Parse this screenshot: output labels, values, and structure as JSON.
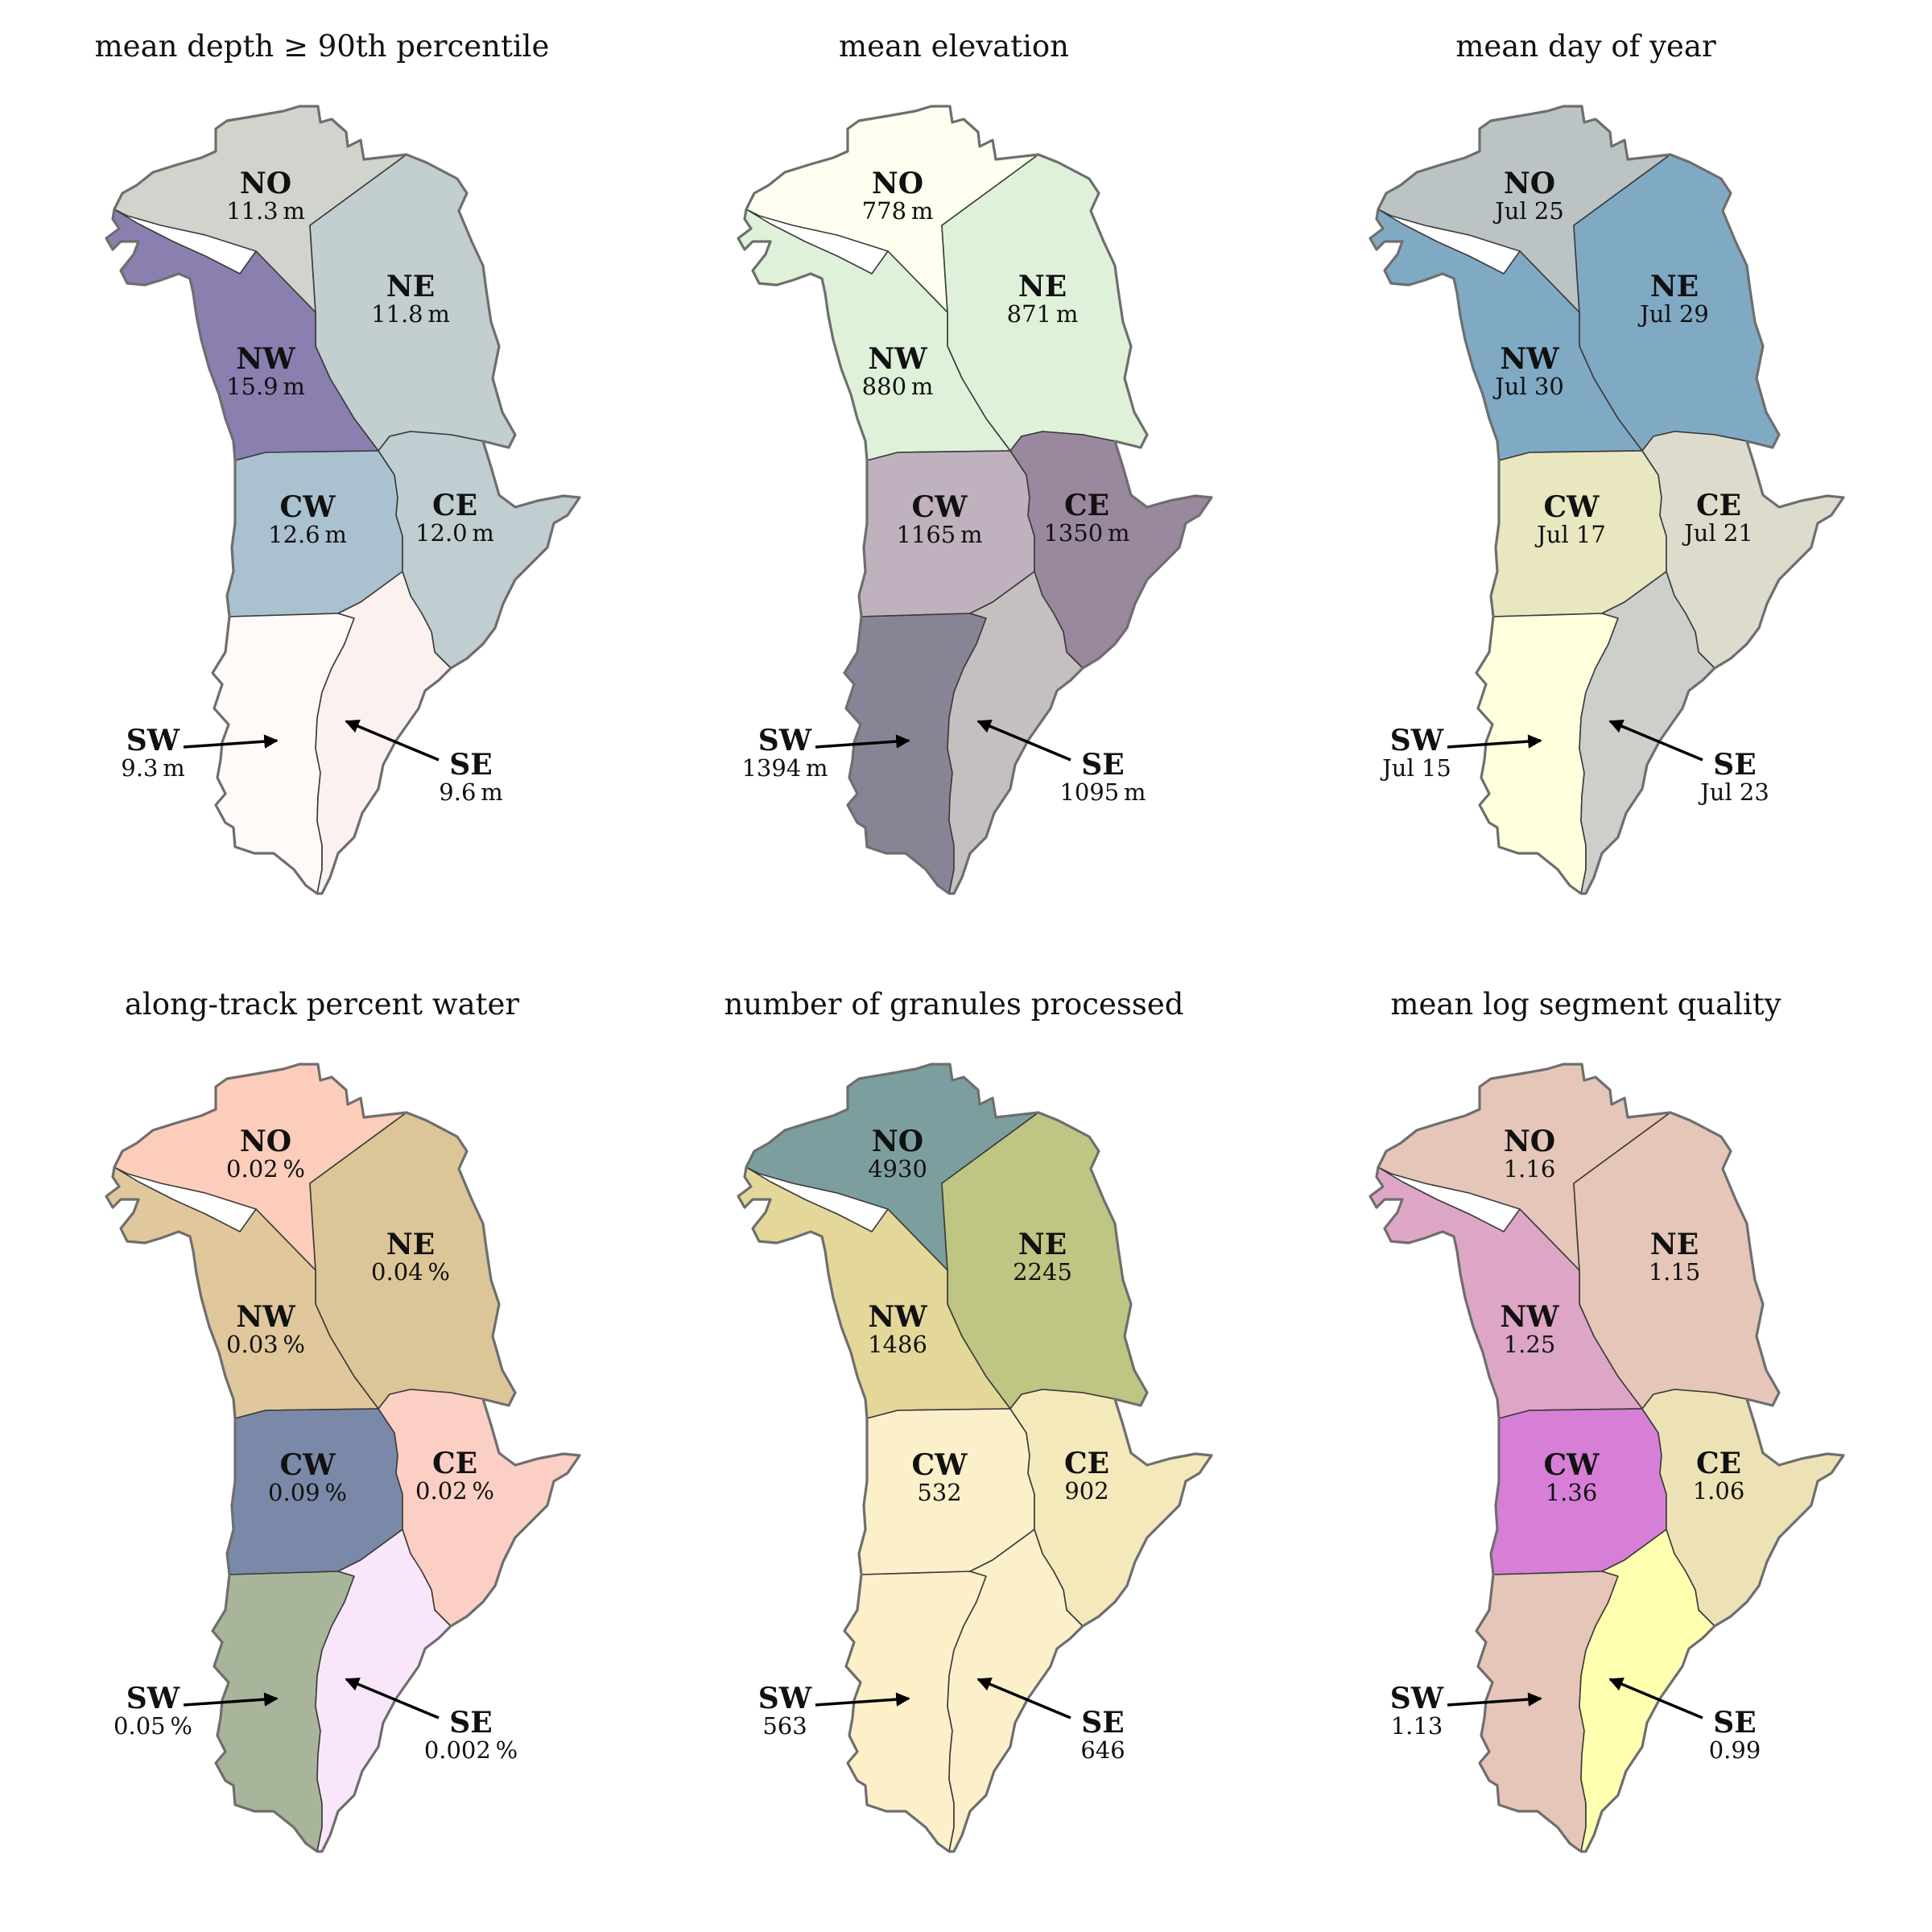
{
  "figure": {
    "region_codes": [
      "NO",
      "NE",
      "NW",
      "CW",
      "CE",
      "SW",
      "SE"
    ]
  },
  "panels": [
    {
      "title": "mean depth ≥ 90th percentile",
      "values": {
        "NO": "11.3 m",
        "NE": "11.8 m",
        "NW": "15.9 m",
        "CW": "12.6 m",
        "CE": "12.0 m",
        "SW": "9.3 m",
        "SE": "9.6 m"
      },
      "colors": {
        "NO": "#d0d4cc",
        "NE": "#c2ced0",
        "NW": "#8b7fb0",
        "CW": "#aac2cf",
        "CE": "#c0cdd1",
        "SW": "#fff9f8",
        "SE": "#fbf1ee"
      }
    },
    {
      "title": "mean elevation",
      "values": {
        "NO": "778 m",
        "NE": "871 m",
        "NW": "880 m",
        "CW": "1165 m",
        "CE": "1350 m",
        "SW": "1394 m",
        "SE": "1095 m"
      },
      "colors": {
        "NO": "#fffff0",
        "NE": "#dff2d9",
        "NW": "#dff2d9",
        "CW": "#c0b1bf",
        "CE": "#9a889f",
        "SW": "#888495",
        "SE": "#c5bfc0"
      }
    },
    {
      "title": "mean day of year",
      "values": {
        "NO": "Jul 25",
        "NE": "Jul 29",
        "NW": "Jul 30",
        "CW": "Jul 17",
        "CE": "Jul 21",
        "SW": "Jul 15",
        "SE": "Jul 23"
      },
      "colors": {
        "NO": "#bcc3c5",
        "NE": "#80a9c4",
        "NW": "#80a9c4",
        "CW": "#e8e7c0",
        "CE": "#dddccc",
        "SW": "#ffffdd",
        "SE": "#cdcfca"
      }
    },
    {
      "title": "along-track percent water",
      "values": {
        "NO": "0.02 %",
        "NE": "0.04 %",
        "NW": "0.03 %",
        "CW": "0.09 %",
        "CE": "0.02 %",
        "SW": "0.05 %",
        "SE": "0.002 %"
      },
      "colors": {
        "NO": "#fccdba",
        "NE": "#dcc697",
        "NW": "#e0c89c",
        "CW": "#7b89a8",
        "CE": "#fccfc4",
        "SW": "#a9b59b",
        "SE": "#fae6fa"
      }
    },
    {
      "title": "number of granules processed",
      "values": {
        "NO": "4930",
        "NE": "2245",
        "NW": "1486",
        "CW": "532",
        "CE": "902",
        "SW": "563",
        "SE": "646"
      },
      "colors": {
        "NO": "#7c9e9f",
        "NE": "#bfc582",
        "NW": "#e3d89a",
        "CW": "#fcf0cb",
        "CE": "#f3e9ba",
        "SW": "#fdf0c8",
        "SE": "#fbf0c9"
      }
    },
    {
      "title": "mean log segment quality",
      "values": {
        "NO": "1.16",
        "NE": "1.15",
        "NW": "1.25",
        "CW": "1.36",
        "CE": "1.06",
        "SW": "1.13",
        "SE": "0.99"
      },
      "colors": {
        "NO": "#e5c6b8",
        "NE": "#e5c6b8",
        "NW": "#dea6c6",
        "CW": "#d77fd7",
        "CE": "#ece2b6",
        "SW": "#e5c6b8",
        "SE": "#ffffb0"
      }
    }
  ]
}
